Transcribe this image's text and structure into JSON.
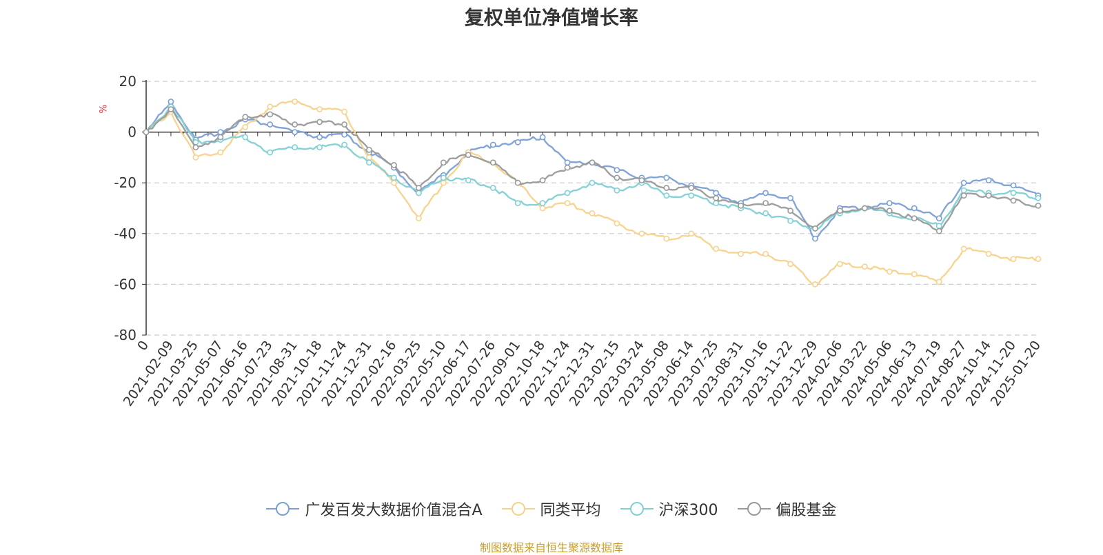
{
  "chart_data": {
    "type": "line",
    "title": "复权单位净值增长率",
    "ylabel": "%",
    "ylim": [
      -80,
      20
    ],
    "yticks": [
      20,
      0,
      -20,
      -40,
      -60,
      -80
    ],
    "grid": true,
    "legend_position": "bottom",
    "x_origin_label": "0",
    "x_tick_labels": [
      "2021-02-09",
      "2021-03-25",
      "2021-05-07",
      "2021-06-16",
      "2021-07-23",
      "2021-08-31",
      "2021-10-18",
      "2021-11-24",
      "2021-12-31",
      "2022-02-16",
      "2022-03-25",
      "2022-05-10",
      "2022-06-17",
      "2022-07-26",
      "2022-09-01",
      "2022-10-18",
      "2022-11-24",
      "2022-12-31",
      "2023-02-15",
      "2023-03-24",
      "2023-05-08",
      "2023-06-14",
      "2023-07-25",
      "2023-08-31",
      "2023-10-16",
      "2023-11-22",
      "2023-12-29",
      "2024-02-06",
      "2024-03-22",
      "2024-05-06",
      "2024-06-13",
      "2024-07-19",
      "2024-08-27",
      "2024-10-14",
      "2024-11-20",
      "2025-01-20"
    ],
    "x_positions": [
      0,
      1,
      2,
      3,
      4,
      5,
      6,
      7,
      8,
      9,
      10,
      11,
      12,
      13,
      14,
      15,
      16,
      17,
      18,
      19,
      20,
      21,
      22,
      23,
      24,
      25,
      26,
      27,
      28,
      29,
      30,
      31,
      32,
      33,
      34,
      35,
      36
    ],
    "series": [
      {
        "name": "广发百发大数据价值混合A",
        "color": "#7b9fd4",
        "values": [
          0,
          12,
          -3,
          0,
          5,
          3,
          0,
          -2,
          -1,
          -8,
          -14,
          -24,
          -17,
          -8,
          -5,
          -4,
          -2,
          -12,
          -12,
          -15,
          -18,
          -18,
          -21,
          -24,
          -28,
          -24,
          -26,
          -42,
          -30,
          -30,
          -28,
          -30,
          -34,
          -20,
          -19,
          -21,
          -25
        ]
      },
      {
        "name": "同类平均",
        "color": "#f7d28c",
        "values": [
          0,
          8,
          -10,
          -8,
          2,
          10,
          12,
          9,
          8,
          -10,
          -20,
          -34,
          -20,
          -8,
          -12,
          -20,
          -30,
          -28,
          -32,
          -36,
          -40,
          -42,
          -40,
          -46,
          -48,
          -48,
          -52,
          -60,
          -52,
          -53,
          -55,
          -56,
          -59,
          -46,
          -48,
          -50,
          -50
        ]
      },
      {
        "name": "沪深300",
        "color": "#80d0d4",
        "values": [
          0,
          10,
          -4,
          -3,
          -2,
          -8,
          -6,
          -6,
          -5,
          -12,
          -18,
          -24,
          -18,
          -19,
          -22,
          -28,
          -28,
          -24,
          -20,
          -23,
          -20,
          -25,
          -25,
          -28,
          -30,
          -32,
          -35,
          -38,
          -32,
          -30,
          -32,
          -34,
          -37,
          -23,
          -24,
          -24,
          -26
        ]
      },
      {
        "name": "偏股基金",
        "color": "#9a9a9a",
        "values": [
          0,
          9,
          -6,
          -2,
          6,
          7,
          3,
          4,
          3,
          -7,
          -13,
          -22,
          -12,
          -9,
          -12,
          -20,
          -19,
          -14,
          -12,
          -18,
          -19,
          -22,
          -22,
          -26,
          -29,
          -28,
          -31,
          -38,
          -31,
          -30,
          -31,
          -34,
          -39,
          -25,
          -25,
          -27,
          -29
        ]
      }
    ]
  },
  "legend": {
    "items": [
      {
        "label": "广发百发大数据价值混合A",
        "color": "#7b9fd4"
      },
      {
        "label": "同类平均",
        "color": "#f7d28c"
      },
      {
        "label": "沪深300",
        "color": "#80d0d4"
      },
      {
        "label": "偏股基金",
        "color": "#9a9a9a"
      }
    ]
  },
  "footer": {
    "source_text": "制图数据来自恒生聚源数据库"
  }
}
